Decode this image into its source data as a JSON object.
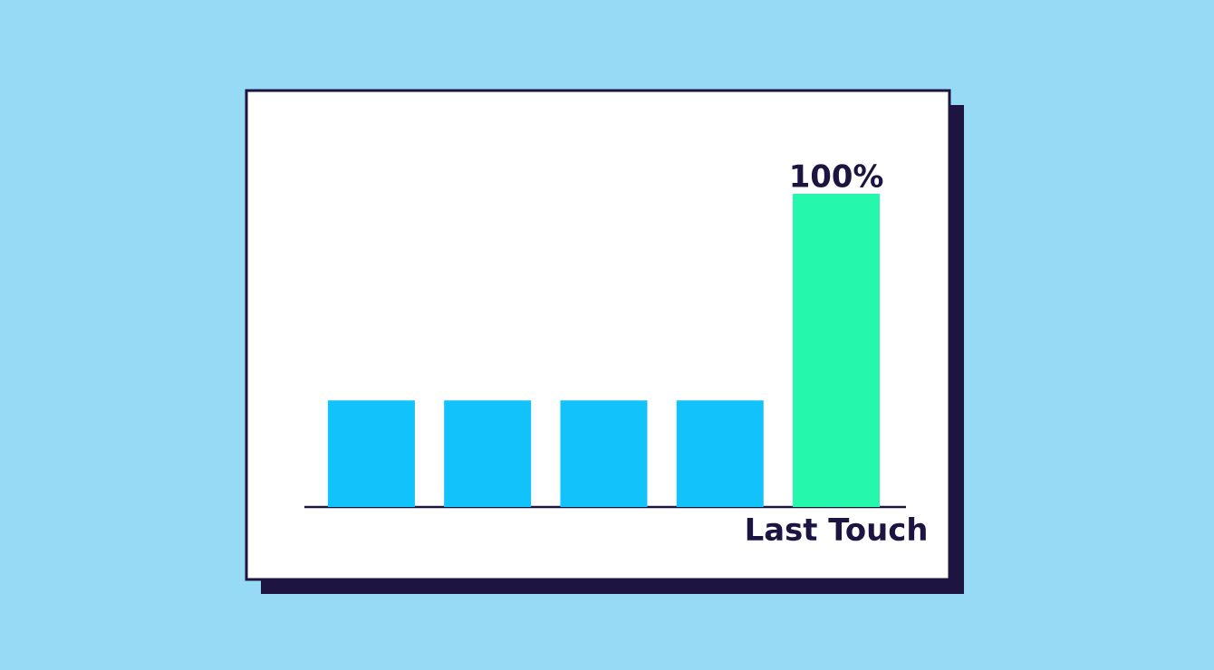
{
  "chart_data": {
    "type": "bar",
    "categories": [
      null,
      null,
      null,
      null,
      "Last Touch"
    ],
    "values": [
      34,
      34,
      34,
      34,
      100
    ],
    "colors": [
      "#12c2fb",
      "#12c2fb",
      "#12c2fb",
      "#12c2fb",
      "#25f7ac"
    ],
    "tick_labels": "x",
    "value_labels": [
      null,
      null,
      null,
      null,
      "100%"
    ]
  }
}
